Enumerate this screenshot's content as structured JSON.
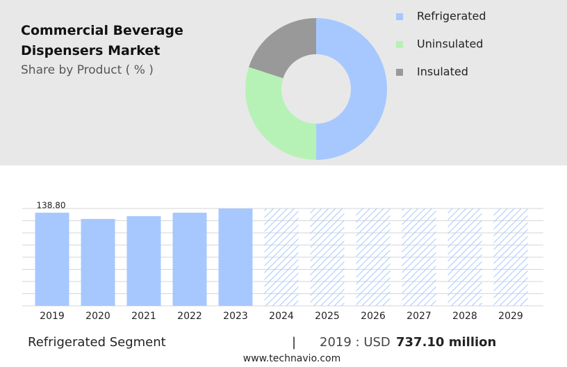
{
  "chart_data": [
    {
      "type": "donut",
      "title": "Commercial Beverage Dispensers Market",
      "subtitle": "Share by Product ( % )",
      "categories": [
        "Refrigerated",
        "Uninsulated",
        "Insulated"
      ],
      "values": [
        50,
        30,
        20
      ],
      "colors": [
        "#a6c8ff",
        "#b6f2b6",
        "#999999"
      ]
    },
    {
      "type": "bar",
      "categories": [
        "2019",
        "2020",
        "2021",
        "2022",
        "2023",
        "2024",
        "2025",
        "2026",
        "2027",
        "2028",
        "2029"
      ],
      "values": [
        138.8,
        129.5,
        133.6,
        138.8,
        145,
        null,
        null,
        null,
        null,
        null,
        null
      ],
      "value_labels": [
        "138.80",
        null,
        null,
        null,
        null,
        null,
        null,
        null,
        null,
        null,
        null
      ],
      "color": "#a6c8ff",
      "ylim": [
        0,
        145
      ]
    }
  ],
  "footer": {
    "segment": "Refrigerated Segment",
    "separator": "|",
    "year_label": "2019 : USD",
    "amount": "737.10 million",
    "source": "www.technavio.com"
  }
}
